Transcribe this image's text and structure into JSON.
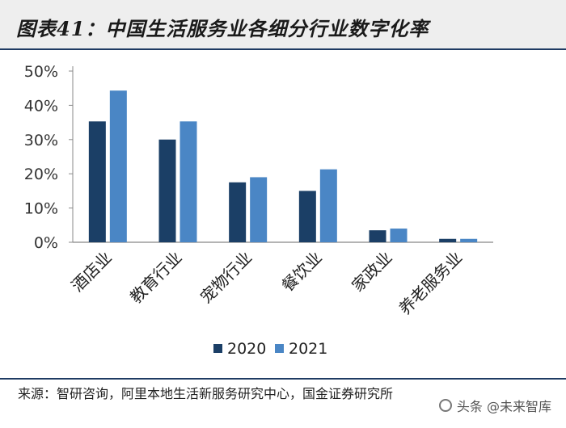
{
  "title": "图表41：中国生活服务业各细分行业数字化率",
  "source": "来源：智研咨询，阿里本地生活新服务研究中心，国金证券研究所",
  "watermark": "头条 @未来智库",
  "colors": {
    "series_2020": "#1b3f66",
    "series_2021": "#4a86c5"
  },
  "chart_data": {
    "type": "bar",
    "categories": [
      "酒店业",
      "教育行业",
      "宠物行业",
      "餐饮业",
      "家政业",
      "养老服务业"
    ],
    "series": [
      {
        "name": "2020",
        "values": [
          35.3,
          30,
          17.5,
          15,
          3.5,
          1
        ]
      },
      {
        "name": "2021",
        "values": [
          44.3,
          35.3,
          19,
          21.3,
          4,
          1
        ]
      }
    ],
    "ylim": [
      0,
      50
    ],
    "yticks": [
      "0%",
      "10%",
      "20%",
      "30%",
      "40%",
      "50%"
    ],
    "legend": "bottom",
    "grid": false,
    "xlabel": "",
    "ylabel": ""
  }
}
